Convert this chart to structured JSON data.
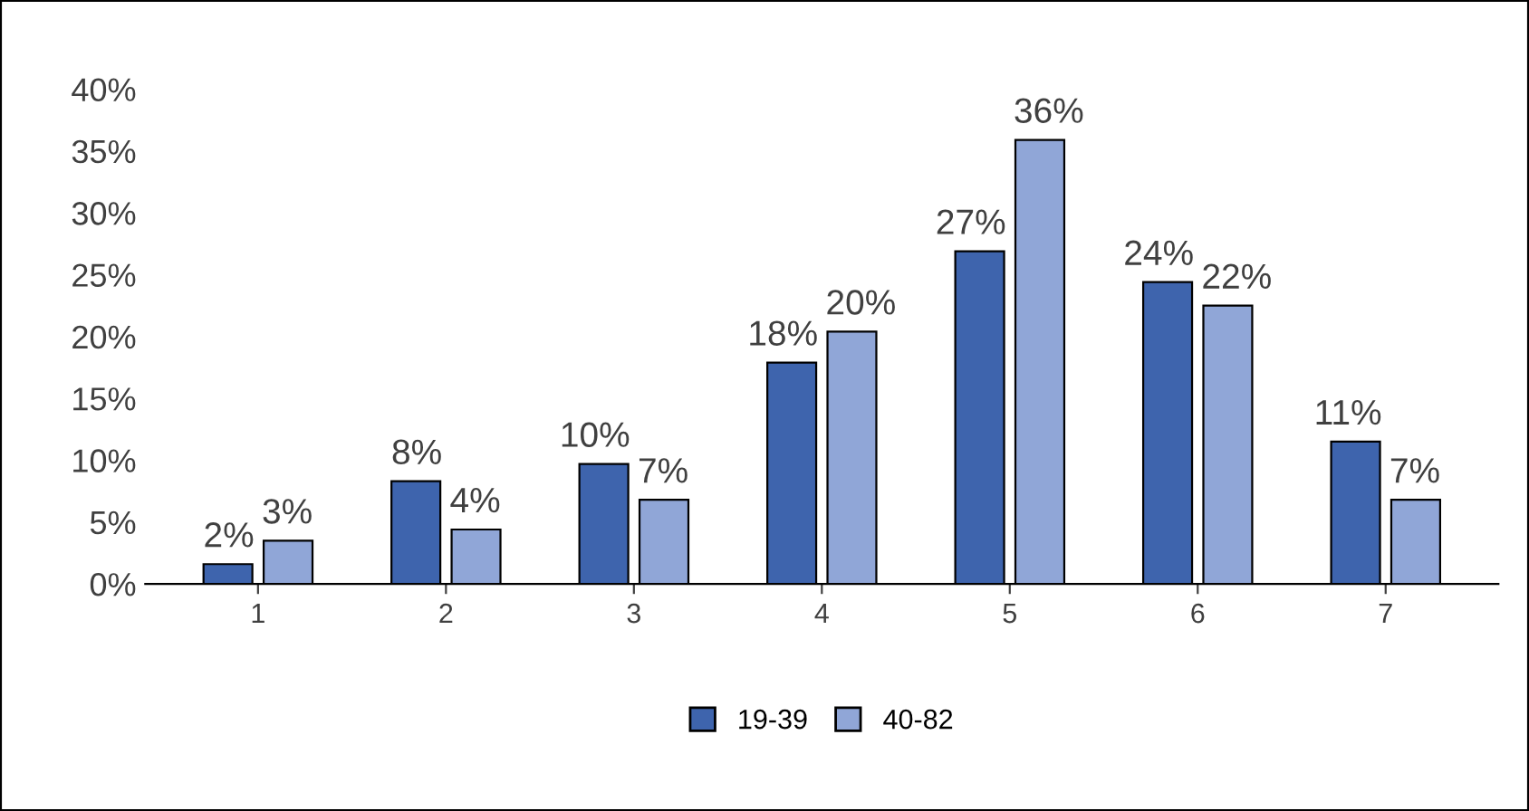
{
  "chart_data": {
    "type": "bar",
    "categories": [
      "1",
      "2",
      "3",
      "4",
      "5",
      "6",
      "7"
    ],
    "series": [
      {
        "name": "19-39",
        "color": "#3e64ad",
        "values": [
          1.6,
          8.3,
          9.7,
          17.9,
          26.9,
          24.4,
          11.5
        ],
        "value_labels": [
          "2%",
          "8%",
          "10%",
          "18%",
          "27%",
          "24%",
          "11%"
        ]
      },
      {
        "name": "40-82",
        "color": "#90a6d7",
        "values": [
          3.5,
          4.4,
          6.8,
          20.4,
          35.9,
          22.5,
          6.8
        ],
        "value_labels": [
          "3%",
          "4%",
          "7%",
          "20%",
          "36%",
          "22%",
          "7%"
        ]
      }
    ],
    "ylim": [
      0,
      40
    ],
    "yticks": [
      {
        "value": 0,
        "label": "0%"
      },
      {
        "value": 5,
        "label": "5%"
      },
      {
        "value": 10,
        "label": "10%"
      },
      {
        "value": 15,
        "label": "15%"
      },
      {
        "value": 20,
        "label": "20%"
      },
      {
        "value": 25,
        "label": "25%"
      },
      {
        "value": 30,
        "label": "30%"
      },
      {
        "value": 35,
        "label": "35%"
      },
      {
        "value": 40,
        "label": "40%"
      }
    ],
    "grid": false,
    "legend": "bottom"
  }
}
